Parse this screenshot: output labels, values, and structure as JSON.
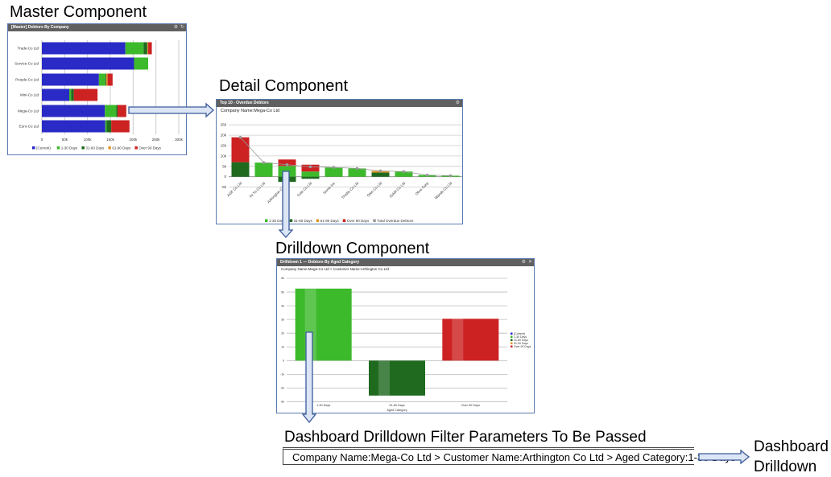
{
  "labels": {
    "master": "Master Component",
    "detail": "Detail Component",
    "drilldown": "Drilldown Component",
    "params_title": "Dashboard Drilldown Filter Parameters To Be Passed",
    "params_value": "Company Name:Mega-Co Ltd > Customer Name:Arthington Co Ltd > Aged Category:1-30 Days",
    "dashboard_line1": "Dashboard",
    "dashboard_line2": "Drilldown"
  },
  "colors": {
    "current": "#2a2ac6",
    "d1_30": "#3dba2c",
    "d31_60": "#1f6a1f",
    "d61_90": "#e0962a",
    "over90": "#cc2222",
    "total": "#9a9a9a",
    "arrow_fill": "#dbe5f5",
    "arrow_stroke": "#3a5a9a"
  },
  "chart_data": [
    {
      "type": "bar",
      "orientation": "horizontal",
      "stacked": true,
      "title": "[Master] Debtors By Company",
      "categories": [
        "Trade-Co Ltd",
        "Service-Co Ltd",
        "People-Co Ltd",
        "Mini-Co Ltd",
        "Mega-Co Ltd",
        "Euro-Co Ltd"
      ],
      "series": [
        {
          "name": "(Current)",
          "key": "current",
          "values": [
            183,
            202,
            125,
            60,
            138,
            139
          ]
        },
        {
          "name": "1-30 Days",
          "key": "d1_30",
          "values": [
            40,
            31,
            14,
            4,
            25,
            3
          ]
        },
        {
          "name": "31-60 Days",
          "key": "d31_60",
          "values": [
            8,
            0,
            2,
            6,
            3,
            10
          ]
        },
        {
          "name": "61-90 Days",
          "key": "d61_90",
          "values": [
            2,
            0,
            3,
            0,
            0,
            0
          ]
        },
        {
          "name": "Over 90 Days",
          "key": "over90",
          "values": [
            8,
            0,
            11,
            52,
            19,
            40
          ]
        }
      ],
      "xticks": [
        "0",
        "50k",
        "100k",
        "150k",
        "200k",
        "250k",
        "300k"
      ],
      "xlim": [
        0,
        300
      ],
      "units": "k",
      "legend": "bottom"
    },
    {
      "type": "bar",
      "stacked": true,
      "title": "Top 10 - Overdue Debtors",
      "subtitle": "Company Name:Mega-Co Ltd",
      "categories": [
        "AGF Co Ltd",
        "Yo Yo Co Ltd",
        "Arthington Co Ltd",
        "Cole Co Ltd",
        "Some Inc",
        "Thistle Co Ltd",
        "Olen Co Ltd",
        "ISAM Co Ltd",
        "Olive Corp",
        "Wands Co Ltd"
      ],
      "series": [
        {
          "name": "1-30 Days",
          "key": "d1_30",
          "values": [
            0,
            6.8,
            5.2,
            2.5,
            4.5,
            4,
            0,
            2.5,
            0.8,
            0.5
          ]
        },
        {
          "name": "31-60 Days",
          "key": "d31_60",
          "values": [
            7,
            0,
            -2.5,
            -1,
            0,
            0,
            2,
            0,
            0,
            0
          ]
        },
        {
          "name": "61-90 Days",
          "key": "d61_90",
          "values": [
            0,
            0,
            0,
            0,
            0,
            0,
            0.8,
            0,
            0,
            0
          ]
        },
        {
          "name": "Over 90 Days",
          "key": "over90",
          "values": [
            12,
            0,
            3.1,
            3.3,
            0,
            0,
            0,
            0,
            0,
            0
          ]
        },
        {
          "name": "Total Overdue Debtors",
          "key": "total",
          "type": "line",
          "values": [
            19,
            6.8,
            5.8,
            4.8,
            4.5,
            4,
            2.8,
            2.5,
            0.8,
            0.5
          ]
        }
      ],
      "yticks": [
        "25k",
        "20k",
        "15k",
        "10k",
        "5k",
        "0",
        "-5k"
      ],
      "ylim": [
        -5,
        25
      ],
      "units": "k",
      "legend": "bottom"
    },
    {
      "type": "bar",
      "title": "Drilldown 1 — Debtors By Aged Category",
      "subtitle": "Company Name:Mega-Co Ltd > Customer Name:Arthington Co Ltd",
      "categories": [
        "1-30 Days",
        "31-60 Days",
        "Over 90 Days"
      ],
      "keys": [
        "d1_30",
        "d31_60",
        "over90"
      ],
      "values": [
        5.25,
        -2.55,
        3.05
      ],
      "yticks": [
        "6k",
        "5k",
        "4k",
        "3k",
        "2k",
        "1k",
        "0",
        "-1k",
        "-2k",
        "-3k"
      ],
      "ylim": [
        -3,
        6
      ],
      "units": "k",
      "xlabel": "Aged Category",
      "legend_entries": [
        "(Current)",
        "1-30 Days",
        "31-60 Days",
        "61-90 Days",
        "Over 90 Days"
      ],
      "legend": "right"
    }
  ]
}
